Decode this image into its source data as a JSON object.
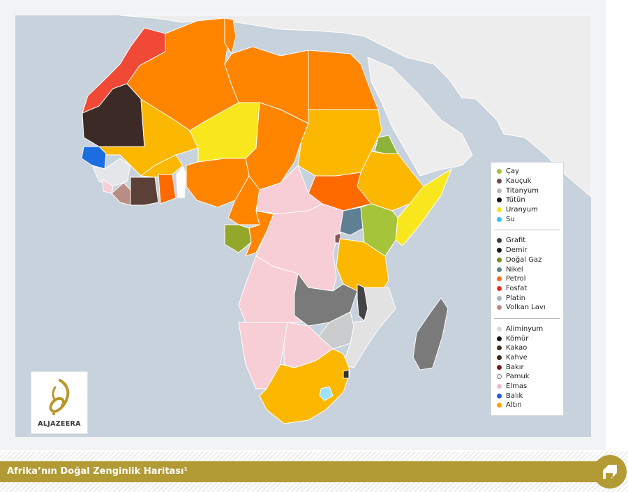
{
  "caption": {
    "title": "Afrika’nın Doğal Zenginlik Haritası¹"
  },
  "logo": {
    "text": "ALJAZEERA"
  },
  "legend": {
    "groups": [
      [
        {
          "label": "Çay",
          "color": "#a5c43a"
        },
        {
          "label": "Kauçuk",
          "color": "#6d4a4a"
        },
        {
          "label": "Titanyum",
          "color": "#b9b9b9"
        },
        {
          "label": "Tütün",
          "color": "#111111"
        },
        {
          "label": "Uranyum",
          "color": "#f7e41a"
        },
        {
          "label": "Su",
          "color": "#34c4f0"
        }
      ],
      [
        {
          "label": "Grafit",
          "color": "#3d3d3d"
        },
        {
          "label": "Demir",
          "color": "#151515"
        },
        {
          "label": "Doğal Gaz",
          "color": "#7b8a1c"
        },
        {
          "label": "Nikel",
          "color": "#5f7f92"
        },
        {
          "label": "Petrol",
          "color": "#ff6a1a"
        },
        {
          "label": "Fosfat",
          "color": "#e52b24"
        },
        {
          "label": "Platin",
          "color": "#a6b7bf"
        },
        {
          "label": "Volkan Lavı",
          "color": "#b88d83"
        }
      ],
      [
        {
          "label": "Aliminyum",
          "color": "#d8d8d8"
        },
        {
          "label": "Kömür",
          "color": "#141414"
        },
        {
          "label": "Kakao",
          "color": "#4a3222"
        },
        {
          "label": "Kahve",
          "color": "#3b2a1c"
        },
        {
          "label": "Bakır",
          "color": "#7a1f1a"
        },
        {
          "label": "Pamuk",
          "color": "#ffffff"
        },
        {
          "label": "Elmas",
          "color": "#f5b8c8"
        },
        {
          "label": "Balık",
          "color": "#1c5de0"
        },
        {
          "label": "Altın",
          "color": "#fca400"
        }
      ]
    ]
  },
  "colors": {
    "ocean": "#c8d2dc",
    "land_other": "#ededed",
    "altin": "#fca400",
    "petrol": "#ff8400",
    "fosfat": "#f03c2c",
    "uranyum": "#f8e71c",
    "elmas": "#f7cdd6",
    "grafit": "#777777",
    "caption_bar": "#b29a34"
  }
}
